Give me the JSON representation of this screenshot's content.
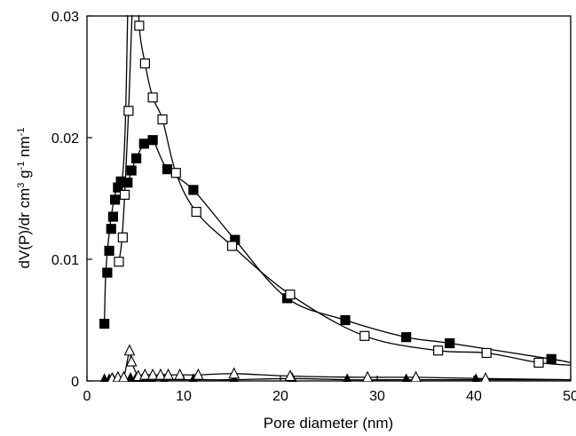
{
  "chart_data": {
    "type": "scatter",
    "title": "",
    "xlabel": "Pore diameter (nm)",
    "ylabel": "dV(P)/dr cm³ g⁻¹ nm⁻¹",
    "xlim": [
      0,
      50
    ],
    "ylim": [
      0,
      0.03
    ],
    "x_ticks": [
      0,
      10,
      20,
      30,
      40,
      50
    ],
    "x_tick_labels": [
      "0",
      "10",
      "20",
      "30",
      "40",
      "50"
    ],
    "y_ticks": [
      0,
      0.01,
      0.02,
      0.03
    ],
    "y_tick_labels": [
      "0",
      "0.01",
      "0.02",
      "0.03"
    ],
    "grid": false,
    "legend": "none",
    "series": [
      {
        "marker": "filled-square",
        "points": [
          [
            1.8,
            0.0047
          ],
          [
            2.1,
            0.0089
          ],
          [
            2.3,
            0.0107
          ],
          [
            2.5,
            0.0125
          ],
          [
            2.7,
            0.0135
          ],
          [
            2.9,
            0.0149
          ],
          [
            3.2,
            0.0159
          ],
          [
            3.5,
            0.0164
          ],
          [
            4.2,
            0.0163
          ],
          [
            4.6,
            0.0173
          ],
          [
            5.1,
            0.0183
          ],
          [
            5.9,
            0.0195
          ],
          [
            6.8,
            0.0198
          ],
          [
            8.3,
            0.0174
          ],
          [
            11.0,
            0.0157
          ],
          [
            15.3,
            0.0116
          ],
          [
            20.7,
            0.0068
          ],
          [
            26.7,
            0.005
          ],
          [
            33.0,
            0.0036
          ],
          [
            37.5,
            0.0031
          ],
          [
            48.0,
            0.0018
          ]
        ],
        "curve_extra": [
          [
            1.8,
            0.0047
          ],
          [
            1.95,
            0.009
          ],
          [
            2.3,
            0.0122
          ],
          [
            2.7,
            0.0145
          ],
          [
            3.2,
            0.0162
          ],
          [
            3.7,
            0.017
          ],
          [
            4.0,
            0.022
          ],
          [
            4.2,
            0.03
          ],
          [
            4.3,
            0.031
          ]
        ]
      },
      {
        "marker": "open-square",
        "points": [
          [
            3.3,
            0.0098
          ],
          [
            3.7,
            0.0118
          ],
          [
            3.9,
            0.0153
          ],
          [
            4.3,
            0.0222
          ],
          [
            5.4,
            0.0292
          ],
          [
            6.0,
            0.0261
          ],
          [
            6.8,
            0.0233
          ],
          [
            7.8,
            0.0215
          ],
          [
            9.2,
            0.0171
          ],
          [
            11.3,
            0.0139
          ],
          [
            15.0,
            0.0111
          ],
          [
            21.0,
            0.0071
          ],
          [
            28.7,
            0.0037
          ],
          [
            36.3,
            0.0025
          ],
          [
            41.3,
            0.0023
          ],
          [
            46.7,
            0.0015
          ]
        ]
      },
      {
        "marker": "filled-triangle",
        "points": [
          [
            1.8,
            0.0001
          ],
          [
            2.3,
            0.0001
          ],
          [
            2.7,
            0.0001
          ],
          [
            3.2,
            0.0001
          ],
          [
            3.8,
            0.0001
          ],
          [
            4.5,
            0.0002
          ],
          [
            5.0,
            0.0001
          ],
          [
            5.7,
            0.0001
          ],
          [
            6.2,
            0.0001
          ],
          [
            6.7,
            0.0001
          ],
          [
            8.0,
            0.0001
          ],
          [
            11.0,
            0.0001
          ],
          [
            15.2,
            0.0001
          ],
          [
            21.2,
            0.0002
          ],
          [
            26.9,
            0.0001
          ],
          [
            33.0,
            0.0001
          ],
          [
            40.2,
            0.0001
          ]
        ]
      },
      {
        "marker": "open-triangle",
        "points": [
          [
            2.6,
            0.0002
          ],
          [
            3.2,
            0.0003
          ],
          [
            3.8,
            0.0003
          ],
          [
            4.4,
            0.0025
          ],
          [
            4.6,
            0.0016
          ],
          [
            5.3,
            0.0004
          ],
          [
            6.0,
            0.0005
          ],
          [
            6.8,
            0.0005
          ],
          [
            7.6,
            0.0005
          ],
          [
            8.4,
            0.0005
          ],
          [
            9.6,
            0.0005
          ],
          [
            11.5,
            0.0005
          ],
          [
            15.2,
            0.0006
          ],
          [
            21.0,
            0.0004
          ],
          [
            29.0,
            0.0003
          ],
          [
            34.0,
            0.0003
          ],
          [
            41.2,
            0.0002
          ]
        ]
      }
    ]
  }
}
